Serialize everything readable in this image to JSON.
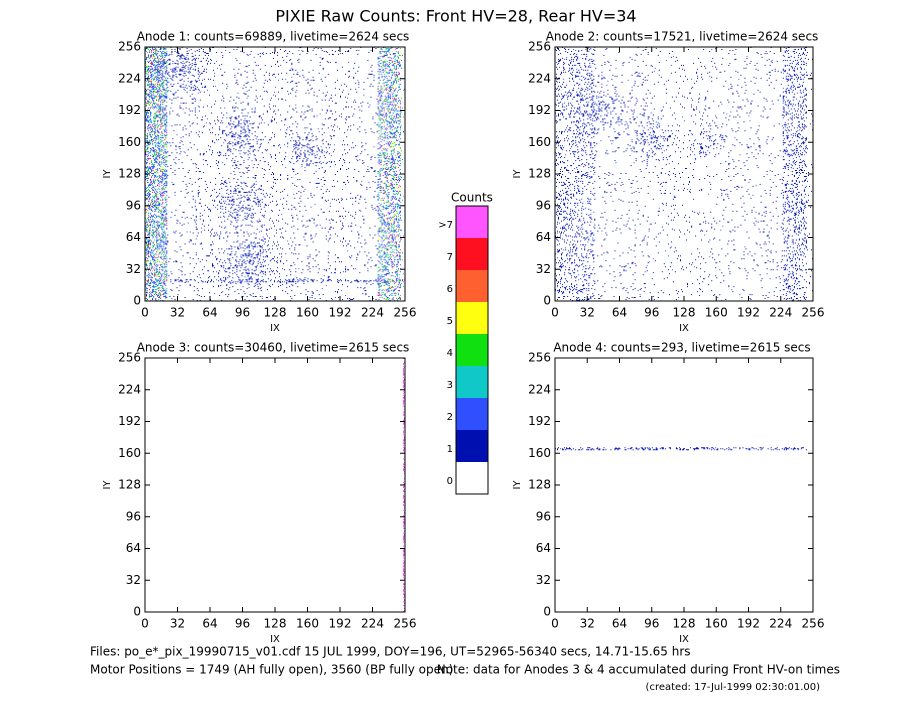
{
  "title": "PIXIE Raw Counts:  Front HV=28, Rear HV=34",
  "axes": {
    "xlabel": "IX",
    "ylabel": "IY",
    "lim": [
      0,
      256
    ],
    "ticks": [
      0,
      32,
      64,
      96,
      128,
      160,
      192,
      224,
      256
    ]
  },
  "panels": [
    {
      "title": "Anode 1: counts=69889, livetime=2624 secs"
    },
    {
      "title": "Anode 2: counts=17521, livetime=2624 secs"
    },
    {
      "title": "Anode 3: counts=30460, livetime=2615 secs"
    },
    {
      "title": "Anode 4: counts=293, livetime=2615 secs"
    }
  ],
  "colorbar": {
    "title": "Counts",
    "levels": [
      {
        "label": ">7",
        "color": "#ff55ff"
      },
      {
        "label": "7",
        "color": "#ff1020"
      },
      {
        "label": "6",
        "color": "#ff6030"
      },
      {
        "label": "5",
        "color": "#ffff10"
      },
      {
        "label": "4",
        "color": "#10e010"
      },
      {
        "label": "3",
        "color": "#10c8c8"
      },
      {
        "label": "2",
        "color": "#3050ff"
      },
      {
        "label": "1",
        "color": "#0010b0"
      },
      {
        "label": "0",
        "color": "#ffffff"
      }
    ]
  },
  "footer": {
    "files": "Files: po_e*_pix_19990715_v01.cdf    15 JUL 1999, DOY=196, UT=52965-56340 secs, 14.71-15.65 hrs",
    "motor": "Motor Positions = 1749 (AH fully open), 3560 (BP fully open)",
    "note": "Note: data for Anodes 3 & 4 accumulated during Front HV-on times",
    "created": "(created: 17-Jul-1999 02:30:01.00)"
  }
}
